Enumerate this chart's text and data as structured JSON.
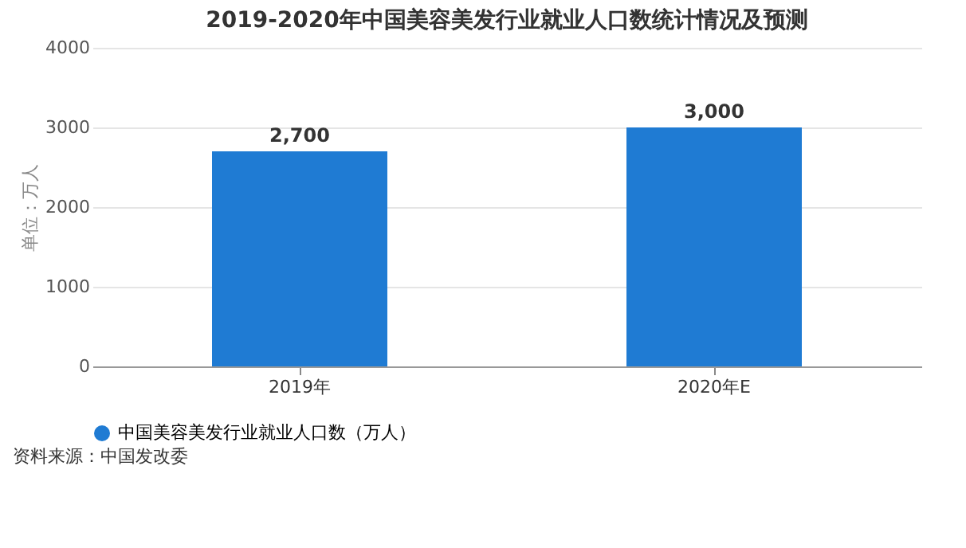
{
  "chart_data": {
    "type": "bar",
    "title": "2019-2020年中国美容美发行业就业人口数统计情况及预测",
    "ylabel": "单位：万人",
    "categories": [
      "2019年",
      "2020年E"
    ],
    "series": [
      {
        "name": "中国美容美发行业就业人口数（万人）",
        "color": "#1f7bd3",
        "values": [
          2700,
          3000
        ],
        "value_labels": [
          "2,700",
          "3,000"
        ]
      }
    ],
    "ylim": [
      0,
      4000
    ],
    "yticks": [
      0,
      1000,
      2000,
      3000,
      4000
    ],
    "grid": "y",
    "legend": "bottom",
    "annotations": [
      "资料来源：中国发改委"
    ]
  }
}
